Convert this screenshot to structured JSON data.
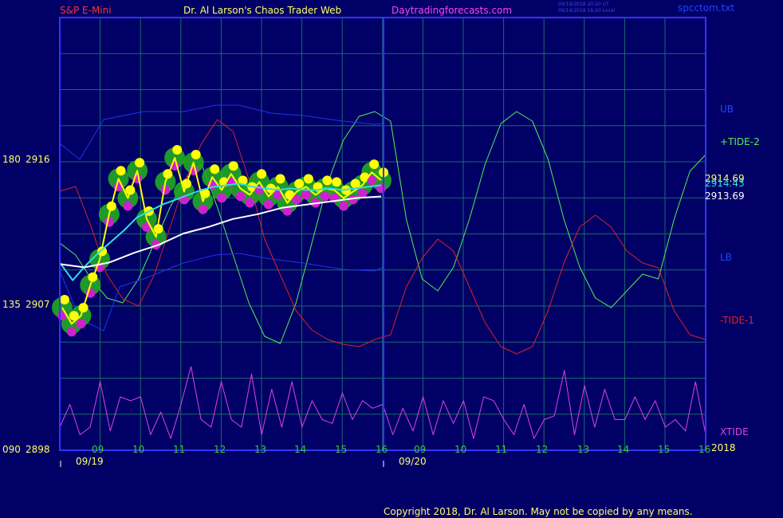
{
  "header": {
    "symbol": "S&P E-Mini",
    "site_title": "Dr. Al Larson's Chaos Trader Web",
    "site_url": "Daytradingforecasts.com",
    "timestamp_utc": "09/19/2018 20:20 UT",
    "timestamp_local": "09/19/2018 16:20 Local",
    "filename": "spcctom.txt"
  },
  "copyright": "Copyright 2018, Dr. Al Larson. May not be copied by any means.",
  "colors": {
    "background": "#000066",
    "grid": "#1a6a6a",
    "frame": "#3333ff",
    "tide2": "#55ee55",
    "tide1": "#dd2222",
    "xtide": "#dd44dd",
    "price_yellow": "#ffff00",
    "cyan": "#33dddd",
    "white": "#ffffff",
    "green_glow": "#22aa22",
    "magenta_dot": "#cc22cc",
    "band": "#2233ee"
  },
  "chart_data": {
    "type": "line",
    "title": "S&P E-Mini",
    "y_axis": {
      "price_ticks": [
        "2916",
        "2907",
        "2898"
      ],
      "phase_ticks": [
        "180",
        "135",
        "090"
      ],
      "price_range": [
        2898,
        2916
      ]
    },
    "x_axis": {
      "hour_labels_day1": [
        "09",
        "10",
        "11",
        "12",
        "13",
        "14",
        "15",
        "16"
      ],
      "hour_labels_day2": [
        "09",
        "10",
        "11",
        "12",
        "13",
        "14",
        "15",
        "16"
      ],
      "date_labels": [
        "09/19",
        "09/20"
      ],
      "year_label": "2018"
    },
    "right_labels": {
      "ub": "UB",
      "lb": "LB",
      "tide2": "+TIDE-2",
      "tide1": "-TIDE-1",
      "xtide": "XTIDE",
      "last_price_1": "2914.69",
      "last_price_2": "2914.43",
      "last_price_3": "2913.69"
    },
    "series": [
      {
        "name": "+TIDE-2",
        "values": [
          0.45,
          0.4,
          0.3,
          0.22,
          0.2,
          0.3,
          0.45,
          0.6,
          0.72,
          0.78,
          0.6,
          0.4,
          0.2,
          0.06,
          0.03,
          0.2,
          0.45,
          0.7,
          0.88,
          0.98,
          1.0,
          0.96,
          0.55,
          0.3,
          0.25,
          0.35,
          0.55,
          0.78,
          0.95,
          1.0,
          0.96,
          0.8,
          0.55,
          0.35,
          0.22,
          0.18,
          0.25,
          0.32,
          0.3,
          0.55,
          0.75,
          0.82
        ]
      },
      {
        "name": "-TIDE-1",
        "values": [
          0.7,
          0.72,
          0.55,
          0.35,
          0.25,
          0.22,
          0.35,
          0.55,
          0.75,
          0.9,
          1.0,
          0.95,
          0.75,
          0.5,
          0.35,
          0.2,
          0.12,
          0.08,
          0.06,
          0.05,
          0.08,
          0.1,
          0.3,
          0.42,
          0.5,
          0.45,
          0.3,
          0.15,
          0.05,
          0.02,
          0.05,
          0.2,
          0.4,
          0.55,
          0.6,
          0.55,
          0.45,
          0.4,
          0.38,
          0.2,
          0.1,
          0.08
        ]
      },
      {
        "name": "XTIDE",
        "values": [
          0.2,
          0.5,
          0.1,
          0.2,
          0.8,
          0.15,
          0.6,
          0.55,
          0.6,
          0.1,
          0.4,
          0.05,
          0.5,
          1.0,
          0.3,
          0.2,
          0.8,
          0.3,
          0.2,
          0.9,
          0.1,
          0.7,
          0.2,
          0.8,
          0.2,
          0.55,
          0.3,
          0.25,
          0.65,
          0.3,
          0.55,
          0.45,
          0.5,
          0.1,
          0.45,
          0.15,
          0.6,
          0.1,
          0.55,
          0.25,
          0.55,
          0.05,
          0.6,
          0.55,
          0.3,
          0.1,
          0.5,
          0.05,
          0.3,
          0.35,
          0.95,
          0.1,
          0.75,
          0.2,
          0.7,
          0.3,
          0.3,
          0.6,
          0.3,
          0.55,
          0.2,
          0.3,
          0.15,
          0.8,
          0.1
        ]
      },
      {
        "name": "Price",
        "values": [
          2906.8,
          2905.8,
          2906.3,
          2908.2,
          2909.8,
          2912.6,
          2914.8,
          2913.6,
          2915.3,
          2912.3,
          2911.2,
          2914.6,
          2916.1,
          2914.0,
          2915.8,
          2913.4,
          2914.9,
          2914.1,
          2915.1,
          2914.2,
          2913.8,
          2914.6,
          2913.7,
          2914.3,
          2913.3,
          2914.0,
          2914.3,
          2913.8,
          2914.2,
          2914.1,
          2913.6,
          2914.0,
          2914.4,
          2915.2,
          2914.7
        ]
      },
      {
        "name": "Smoothed",
        "values": [
          2909.6,
          2908.5,
          2909.4,
          2910.2,
          2910.9,
          2911.6,
          2912.4,
          2912.8,
          2913.2,
          2913.5,
          2913.8,
          2914.1,
          2914.3,
          2914.4,
          2914.5,
          2914.3,
          2914.2,
          2914.1,
          2914.2,
          2914.1,
          2914.1,
          2914.2,
          2914.1,
          2914.2,
          2914.3,
          2914.4
        ]
      },
      {
        "name": "Average",
        "values": [
          2909.5,
          2909.3,
          2909.6,
          2910.2,
          2910.7,
          2911.4,
          2911.8,
          2912.3,
          2912.6,
          2913.0,
          2913.2,
          2913.4,
          2913.6,
          2913.7
        ]
      }
    ]
  }
}
